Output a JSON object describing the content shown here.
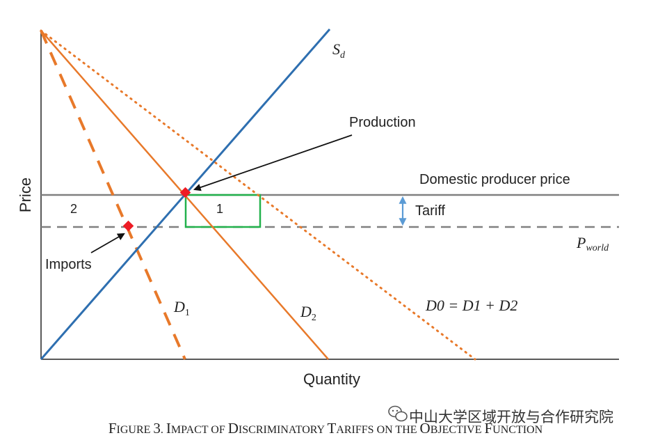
{
  "chart_data": {
    "type": "line",
    "xlabel": "Quantity",
    "ylabel": "Price",
    "grid": false,
    "curves": {
      "supply": {
        "label_main": "S",
        "label_sub": "d"
      },
      "demand_1": {
        "label_main": "D",
        "label_sub": "1"
      },
      "demand_2": {
        "label_main": "D",
        "label_sub": "2"
      },
      "demand_0": {
        "label_text": "D0 = D1 + D2"
      }
    },
    "price_levels": {
      "domestic_label": "Domestic producer price",
      "world_label_main": "P",
      "world_label_sub": "world",
      "tariff_label": "Tariff"
    },
    "annotations": {
      "production": "Production",
      "imports": "Imports",
      "area_1": "1",
      "area_2": "2"
    },
    "colors": {
      "supply": "#2e6fb0",
      "demand": "#e8792a",
      "domestic_line": "#808080",
      "world_line": "#808080",
      "rectangle": "#22b14c",
      "marker": "#ee1c25",
      "tariff_arrow": "#5b9bd5",
      "axis": "#222222"
    }
  },
  "caption": {
    "figure_label": "Figure 3.",
    "title": "Impact of Discriminatory Tariffs on the Objective Function"
  },
  "watermark": {
    "text": "中山大学区域开放与合作研究院",
    "icon": "wechat-icon"
  }
}
